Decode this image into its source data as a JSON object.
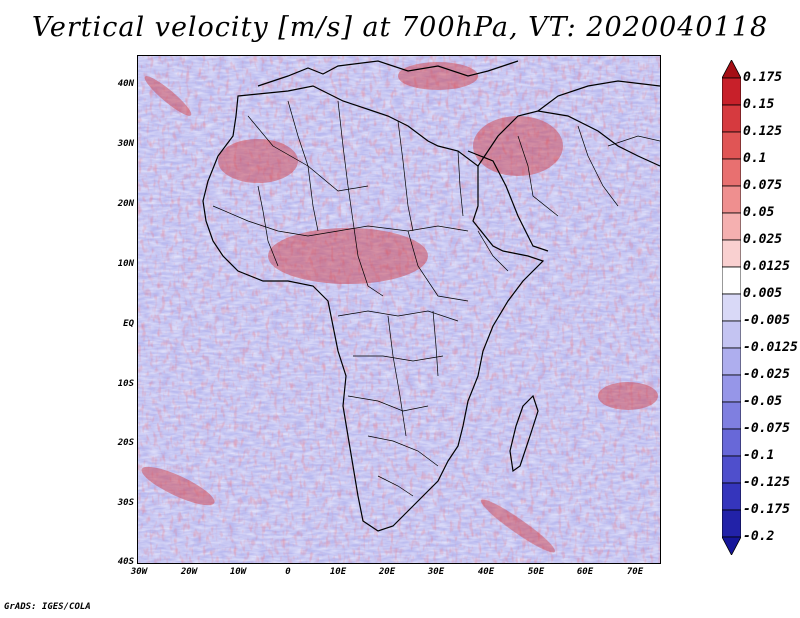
{
  "title": "Vertical velocity [m/s] at 700hPa, VT: 2020040118",
  "lat_labels": [
    "40N",
    "30N",
    "20N",
    "10N",
    "EQ",
    "10S",
    "20S",
    "30S",
    "40S"
  ],
  "lon_labels": [
    "30W",
    "20W",
    "10W",
    "0",
    "10E",
    "20E",
    "30E",
    "40E",
    "50E",
    "60E",
    "70E"
  ],
  "colorbar": {
    "labels": [
      "0.175",
      "0.15",
      "0.125",
      "0.1",
      "0.075",
      "0.05",
      "0.025",
      "0.0125",
      "0.005",
      "-0.005",
      "-0.0125",
      "-0.025",
      "-0.05",
      "-0.075",
      "-0.1",
      "-0.125",
      "-0.175",
      "-0.2"
    ],
    "colors": [
      "#a50f15",
      "#c8202a",
      "#d63a3f",
      "#e05555",
      "#e87070",
      "#ef8f8f",
      "#f5b0b0",
      "#f9d0d0",
      "#ffffff",
      "#d9d9f7",
      "#c4c4f2",
      "#aeaeee",
      "#9696e8",
      "#7f7fe0",
      "#6868d8",
      "#4f4fcc",
      "#3535bc",
      "#2222a8",
      "#16169a"
    ]
  },
  "credit": "GrADS: IGES/COLA"
}
